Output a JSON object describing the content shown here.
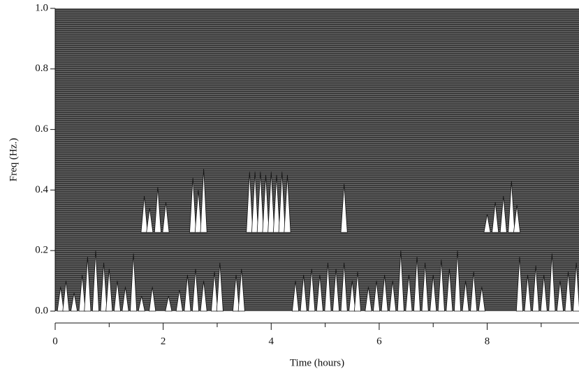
{
  "chart_data": {
    "type": "waterfall",
    "ylabel": "Freq (Hz.)",
    "xlabel": "Time (hours)",
    "xlim": [
      0,
      9.7
    ],
    "ylim": [
      0,
      1
    ],
    "xticks": [
      0,
      2,
      4,
      6,
      8
    ],
    "xminorticks": [
      1,
      3,
      5,
      7,
      9
    ],
    "yticks": [
      {
        "value": 0,
        "label": "0.0"
      },
      0.2,
      0.4,
      0.6,
      0.8,
      {
        "value": 1,
        "label": "1.0"
      }
    ],
    "background": "#3c3c3c",
    "color": "#ffffff",
    "bursts": [
      {
        "base": 0,
        "x": [
          0.1,
          0.2,
          0.35,
          0.5,
          0.6,
          0.75,
          0.9,
          1.0,
          1.15,
          1.3,
          1.45,
          1.6,
          1.8,
          2.1,
          2.3,
          2.45,
          2.6,
          2.75,
          2.95,
          3.05,
          3.35,
          3.45,
          4.45,
          4.6,
          4.75,
          4.9,
          5.05,
          5.2,
          5.35,
          5.5,
          5.6,
          5.8,
          5.95,
          6.1,
          6.25,
          6.4,
          6.55,
          6.7,
          6.85,
          7.0,
          7.15,
          7.3,
          7.45,
          7.6,
          7.75,
          7.9,
          8.6,
          8.75,
          8.9,
          9.05,
          9.2,
          9.35,
          9.5,
          9.65
        ],
        "y": [
          0.08,
          0.1,
          0.06,
          0.12,
          0.18,
          0.2,
          0.16,
          0.14,
          0.1,
          0.08,
          0.19,
          0.05,
          0.08,
          0.05,
          0.07,
          0.12,
          0.14,
          0.1,
          0.13,
          0.16,
          0.12,
          0.14,
          0.1,
          0.12,
          0.14,
          0.12,
          0.16,
          0.14,
          0.16,
          0.1,
          0.13,
          0.08,
          0.1,
          0.12,
          0.1,
          0.2,
          0.12,
          0.18,
          0.16,
          0.12,
          0.17,
          0.14,
          0.2,
          0.1,
          0.13,
          0.08,
          0.18,
          0.12,
          0.15,
          0.12,
          0.19,
          0.1,
          0.13,
          0.16
        ]
      },
      {
        "base": 0.26,
        "x": [
          1.65,
          1.75,
          1.9,
          2.05,
          2.55,
          2.65,
          2.75,
          3.6,
          3.7,
          3.8,
          3.9,
          4.0,
          4.1,
          4.2,
          4.3,
          5.35,
          8.0,
          8.15,
          8.3,
          8.45,
          8.55
        ],
        "y": [
          0.38,
          0.34,
          0.41,
          0.36,
          0.44,
          0.4,
          0.47,
          0.46,
          0.46,
          0.46,
          0.45,
          0.46,
          0.45,
          0.46,
          0.45,
          0.42,
          0.32,
          0.36,
          0.38,
          0.43,
          0.35
        ]
      }
    ]
  }
}
